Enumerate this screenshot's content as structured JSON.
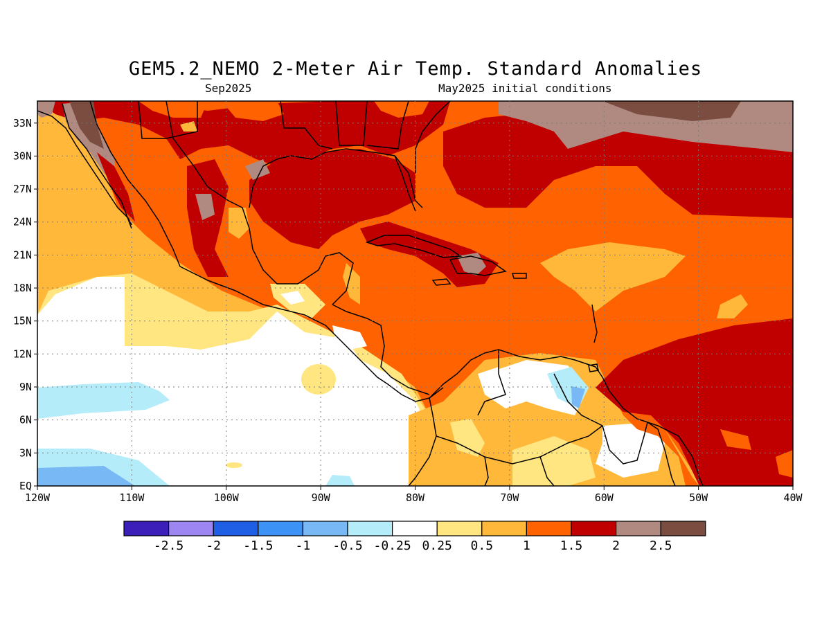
{
  "title": "GEM5.2_NEMO 2-Meter Air Temp. Standard Anomalies",
  "valid_month": "Sep2025",
  "init_conditions": "May2025 initial conditions",
  "map": {
    "lon_range": [
      -120,
      -40
    ],
    "lat_range": [
      0,
      35
    ],
    "lon_ticks": [
      {
        "value": -120,
        "label": "120W"
      },
      {
        "value": -110,
        "label": "110W"
      },
      {
        "value": -100,
        "label": "100W"
      },
      {
        "value": -90,
        "label": "90W"
      },
      {
        "value": -80,
        "label": "80W"
      },
      {
        "value": -70,
        "label": "70W"
      },
      {
        "value": -60,
        "label": "60W"
      },
      {
        "value": -50,
        "label": "50W"
      },
      {
        "value": -40,
        "label": "40W"
      }
    ],
    "lat_ticks": [
      {
        "value": 0,
        "label": "EQ"
      },
      {
        "value": 3,
        "label": "3N"
      },
      {
        "value": 6,
        "label": "6N"
      },
      {
        "value": 9,
        "label": "9N"
      },
      {
        "value": 12,
        "label": "12N"
      },
      {
        "value": 15,
        "label": "15N"
      },
      {
        "value": 18,
        "label": "18N"
      },
      {
        "value": 21,
        "label": "21N"
      },
      {
        "value": 24,
        "label": "24N"
      },
      {
        "value": 27,
        "label": "27N"
      },
      {
        "value": 30,
        "label": "30N"
      },
      {
        "value": 33,
        "label": "33N"
      }
    ],
    "gridlines": "dotted"
  },
  "colorbar": {
    "colors": [
      "#3b1fb8",
      "#9e86f2",
      "#1f5fe6",
      "#3c92f5",
      "#78b8f5",
      "#b4ecfa",
      "#ffffff",
      "#ffe680",
      "#ffb83a",
      "#ff6200",
      "#c00000",
      "#b08a80",
      "#7a4d40"
    ],
    "labels": [
      "-2.5",
      "-2",
      "-1.5",
      "-1",
      "-0.5",
      "-0.25",
      "0.25",
      "0.5",
      "1",
      "1.5",
      "2",
      "2.5"
    ]
  }
}
